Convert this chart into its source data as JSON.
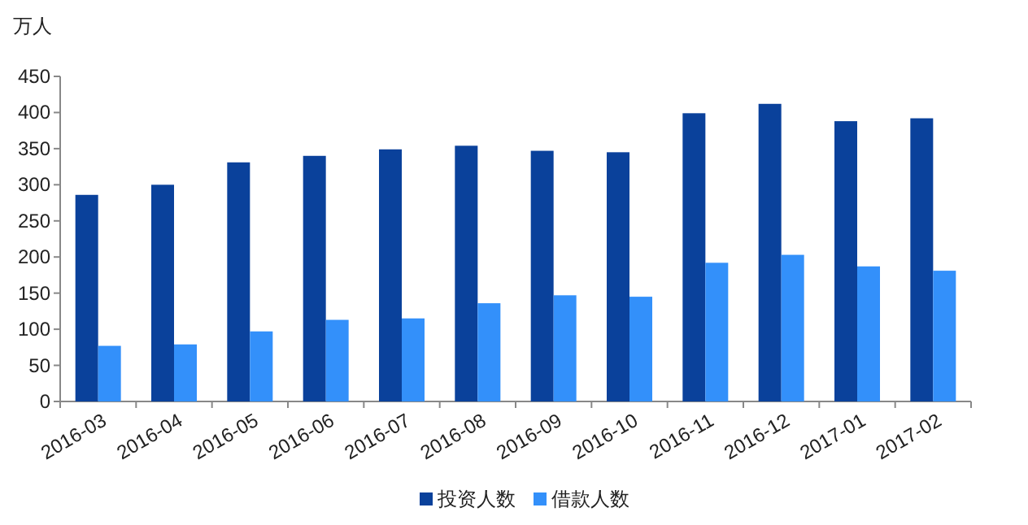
{
  "chart_data": {
    "type": "bar",
    "ylabel": "万人",
    "categories": [
      "2016-03",
      "2016-04",
      "2016-05",
      "2016-06",
      "2016-07",
      "2016-08",
      "2016-09",
      "2016-10",
      "2016-11",
      "2016-12",
      "2017-01",
      "2017-02"
    ],
    "series": [
      {
        "name": "投资人数",
        "color": "#0a419b",
        "values": [
          286,
          300,
          331,
          340,
          349,
          354,
          347,
          345,
          399,
          412,
          388,
          392
        ]
      },
      {
        "name": "借款人数",
        "color": "#3390fa",
        "values": [
          77,
          79,
          97,
          113,
          115,
          136,
          147,
          145,
          192,
          203,
          187,
          181
        ]
      }
    ],
    "ylim": [
      0,
      450
    ],
    "yticks": [
      0,
      50,
      100,
      150,
      200,
      250,
      300,
      350,
      400,
      450
    ],
    "grid": false,
    "legend": "bottom"
  }
}
